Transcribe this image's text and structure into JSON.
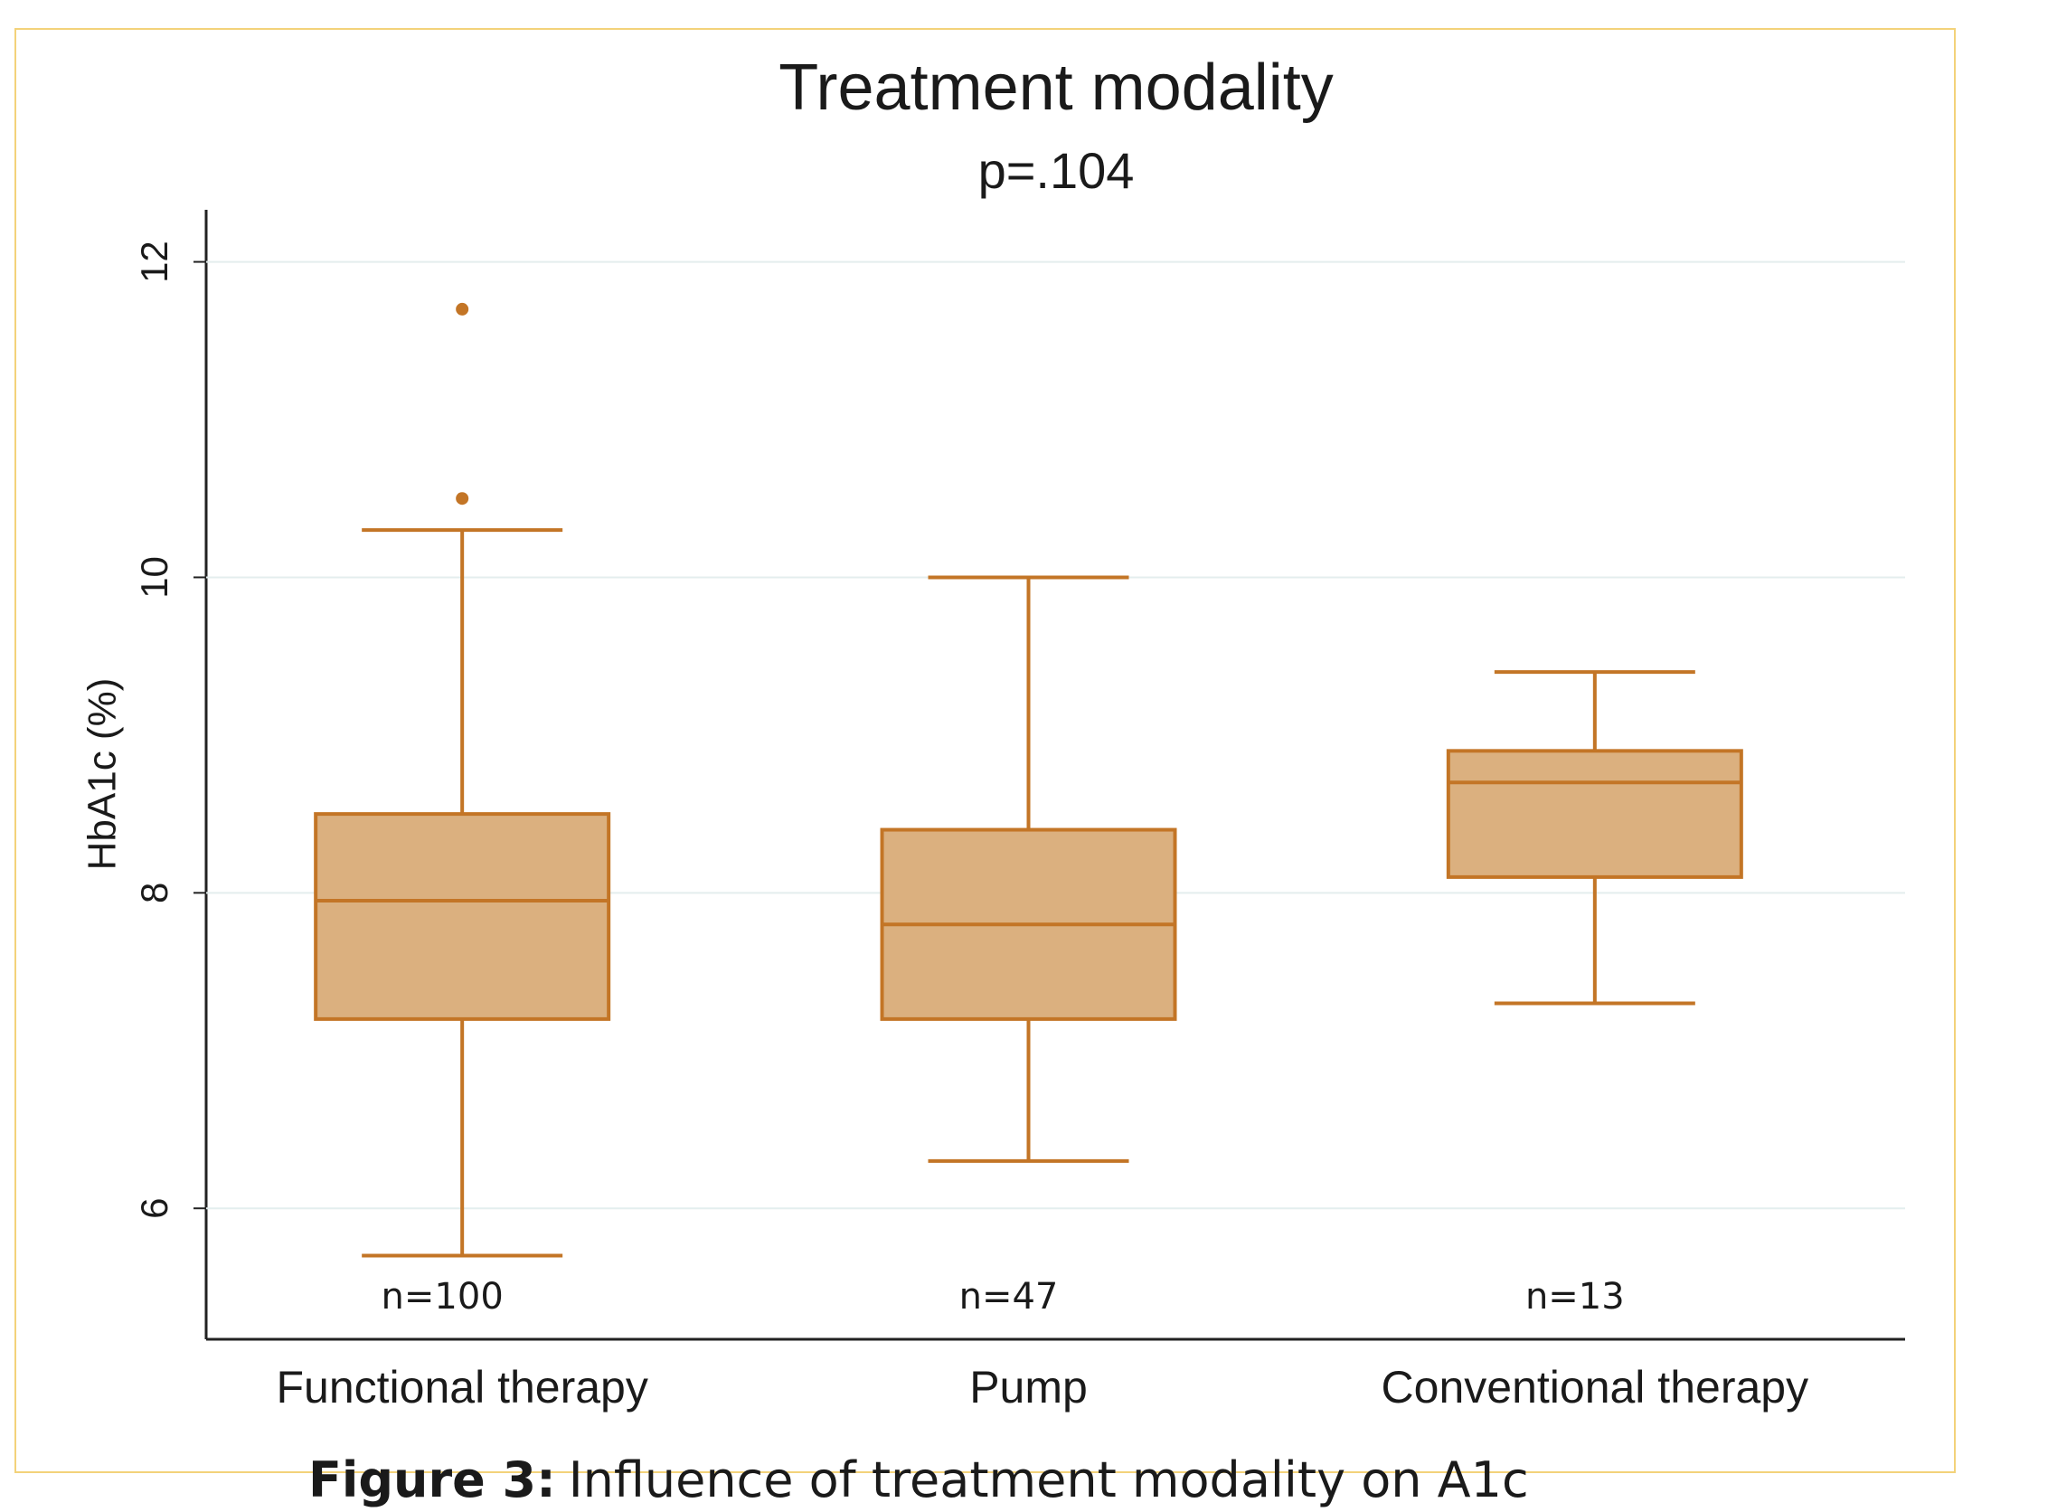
{
  "chart_data": {
    "type": "box",
    "title": "Treatment modality",
    "subtitle": "p=.104",
    "y_label": "HbA1c (%)",
    "categories": [
      "Functional therapy",
      "Pump",
      "Conventional therapy"
    ],
    "min": [
      5.7,
      6.3,
      7.3
    ],
    "q1": [
      7.2,
      7.2,
      8.1
    ],
    "median": [
      7.95,
      7.8,
      8.7
    ],
    "q3": [
      8.5,
      8.4,
      8.9
    ],
    "max": [
      10.3,
      10.0,
      9.4
    ],
    "outliers": [
      [
        10.5,
        11.7
      ],
      [],
      []
    ],
    "annotations": [
      "n=100",
      "n=47",
      "n=13"
    ],
    "fill_color": "#dbb07f",
    "line_color": "#c37526",
    "ylim": [
      5.17,
      12.33
    ],
    "yticks": [
      6,
      8,
      10,
      12
    ],
    "grid": true
  },
  "caption": {
    "label": "Figure 3:",
    "text": "Influence of treatment modality on A1c"
  }
}
